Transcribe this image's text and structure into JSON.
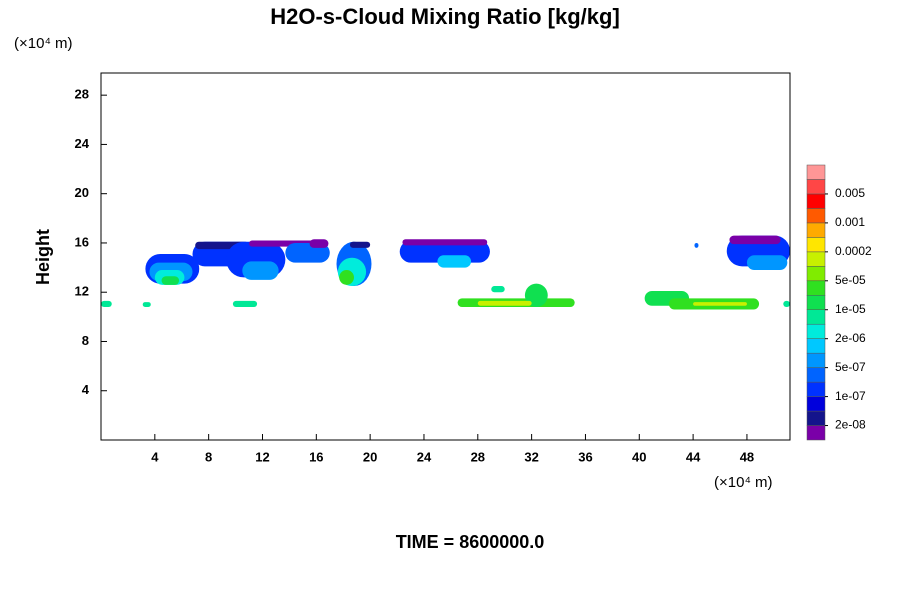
{
  "chart_data": {
    "type": "contour",
    "title": "H2O-s-Cloud Mixing Ratio [kg/kg]",
    "ylabel": "Height",
    "xunit": "(×10⁴ m)",
    "yunit": "(×10⁴ m)",
    "footer": "TIME = 8600000.0",
    "xlim": [
      0,
      51.2
    ],
    "ylim": [
      0,
      29.8
    ],
    "xticks": [
      4,
      8,
      12,
      16,
      20,
      24,
      28,
      32,
      36,
      40,
      44,
      48
    ],
    "yticks": [
      4,
      8,
      12,
      16,
      20,
      24,
      28
    ],
    "colorbar": {
      "colors": [
        "#7a00a8",
        "#14148c",
        "#0000dc",
        "#0032ff",
        "#0064ff",
        "#0096ff",
        "#00c8ff",
        "#00ecdc",
        "#00e896",
        "#10e050",
        "#30e020",
        "#80ec00",
        "#c8f000",
        "#ffe600",
        "#ffaa00",
        "#ff5a00",
        "#ff0000",
        "#ff4646",
        "#ff9696"
      ],
      "levels": [
        {
          "value": 2e-08,
          "label": "2e-08"
        },
        {
          "value": 1e-07,
          "label": "1e-07"
        },
        {
          "value": 5e-07,
          "label": "5e-07"
        },
        {
          "value": 2e-06,
          "label": "2e-06"
        },
        {
          "value": 1e-05,
          "label": "1e-05"
        },
        {
          "value": 5e-05,
          "label": "5e-05"
        },
        0.0002,
        0.001,
        0.005
      ]
    },
    "regions": [
      {
        "x": [
          3.3,
          7.3
        ],
        "y": [
          12.7,
          15.1
        ],
        "value": 1.5e-07
      },
      {
        "x": [
          3.6,
          6.8
        ],
        "y": [
          12.9,
          14.4
        ],
        "value": 7e-07
      },
      {
        "x": [
          4.0,
          6.2
        ],
        "y": [
          12.6,
          13.8
        ],
        "value": 3e-06
      },
      {
        "x": [
          4.5,
          5.8
        ],
        "y": [
          12.6,
          13.3
        ],
        "value": 1.5e-05
      },
      {
        "x": [
          6.8,
          11.4
        ],
        "y": [
          14.1,
          16.1
        ],
        "value": 1.5e-07
      },
      {
        "x": [
          7.0,
          11.0
        ],
        "y": [
          15.5,
          16.1
        ],
        "value": 3e-08
      },
      {
        "x": [
          9.3,
          13.7
        ],
        "y": [
          13.2,
          16.1
        ],
        "value": 1.5e-07
      },
      {
        "x": [
          10.5,
          13.2
        ],
        "y": [
          13.0,
          14.5
        ],
        "value": 7e-07
      },
      {
        "x": [
          11.0,
          16.3
        ],
        "y": [
          15.7,
          16.2
        ],
        "value": 1.5e-08
      },
      {
        "x": [
          13.7,
          17.0
        ],
        "y": [
          14.4,
          16.0
        ],
        "value": 3e-07
      },
      {
        "x": [
          15.5,
          16.9
        ],
        "y": [
          15.6,
          16.3
        ],
        "value": 1.5e-08
      },
      {
        "x": [
          17.5,
          20.1
        ],
        "y": [
          12.5,
          16.1
        ],
        "value": 3e-07
      },
      {
        "x": [
          17.6,
          19.7
        ],
        "y": [
          12.5,
          14.8
        ],
        "value": 3e-06
      },
      {
        "x": [
          17.7,
          18.8
        ],
        "y": [
          12.6,
          13.8
        ],
        "value": 3e-05
      },
      {
        "x": [
          18.5,
          20.0
        ],
        "y": [
          15.6,
          16.1
        ],
        "value": 3e-08
      },
      {
        "x": [
          22.2,
          28.9
        ],
        "y": [
          14.4,
          16.2
        ],
        "value": 1.5e-07
      },
      {
        "x": [
          25.0,
          27.5
        ],
        "y": [
          14.0,
          15.0
        ],
        "value": 1.5e-06
      },
      {
        "x": [
          22.4,
          28.7
        ],
        "y": [
          15.8,
          16.3
        ],
        "value": 1.5e-08
      },
      {
        "x": [
          26.5,
          35.2
        ],
        "y": [
          10.8,
          11.5
        ],
        "value": 3e-05
      },
      {
        "x": [
          31.5,
          33.2
        ],
        "y": [
          10.8,
          12.7
        ],
        "value": 1.5e-05
      },
      {
        "x": [
          28.0,
          32.0
        ],
        "y": [
          10.9,
          11.3
        ],
        "value": 0.00012
      },
      {
        "x": [
          29.0,
          30.0
        ],
        "y": [
          12.0,
          12.5
        ],
        "value": 7e-06
      },
      {
        "x": [
          40.4,
          43.7
        ],
        "y": [
          10.9,
          12.1
        ],
        "value": 1.5e-05
      },
      {
        "x": [
          42.2,
          48.9
        ],
        "y": [
          10.6,
          11.5
        ],
        "value": 3e-05
      },
      {
        "x": [
          44.0,
          48.0
        ],
        "y": [
          10.9,
          11.2
        ],
        "value": 0.00012
      },
      {
        "x": [
          46.5,
          51.2
        ],
        "y": [
          14.1,
          16.6
        ],
        "value": 1.5e-07
      },
      {
        "x": [
          48.0,
          51.0
        ],
        "y": [
          13.8,
          15.0
        ],
        "value": 7e-07
      },
      {
        "x": [
          46.7,
          50.5
        ],
        "y": [
          15.9,
          16.6
        ],
        "value": 1.5e-08
      },
      {
        "x": [
          3.1,
          3.7
        ],
        "y": [
          10.8,
          11.2
        ],
        "value": 7e-06
      },
      {
        "x": [
          9.8,
          11.6
        ],
        "y": [
          10.8,
          11.3
        ],
        "value": 7e-06
      },
      {
        "x": [
          0.0,
          0.8
        ],
        "y": [
          10.8,
          11.3
        ],
        "value": 7e-06
      },
      {
        "x": [
          50.7,
          51.2
        ],
        "y": [
          10.8,
          11.3
        ],
        "value": 7e-06
      },
      {
        "x": [
          44.1,
          44.4
        ],
        "y": [
          15.6,
          16.0
        ],
        "value": 3e-07
      }
    ]
  }
}
